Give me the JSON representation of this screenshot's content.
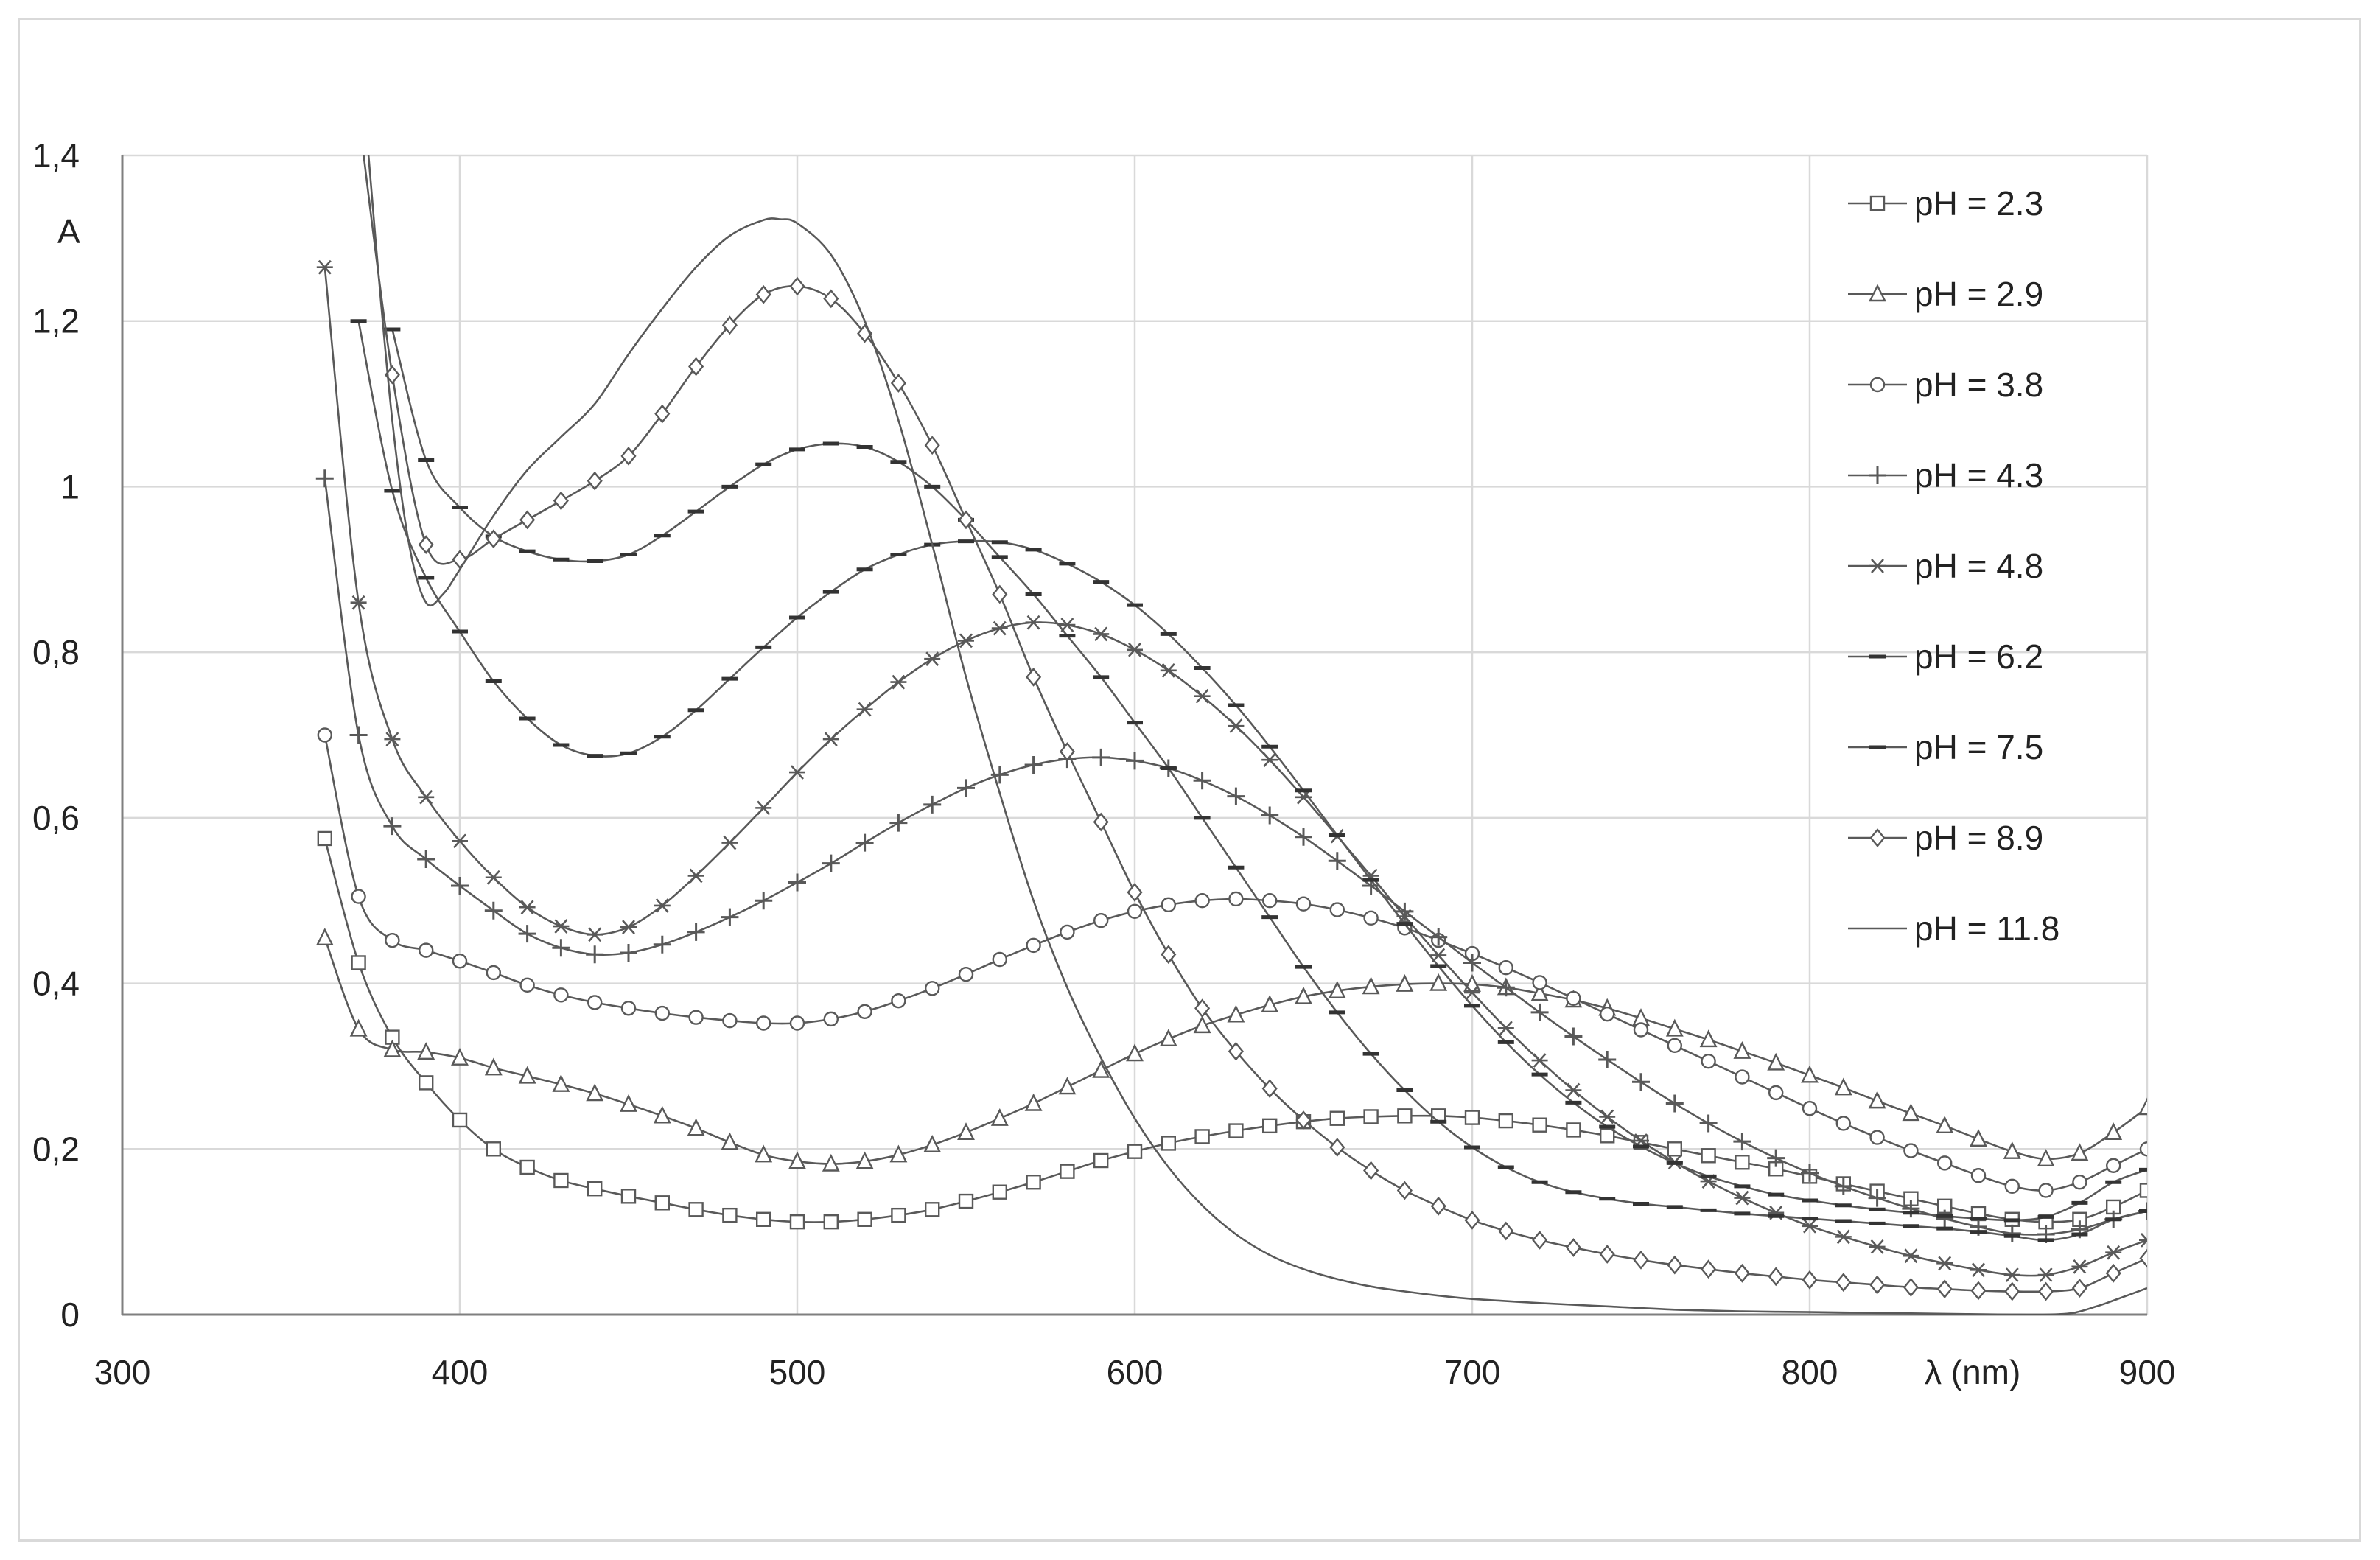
{
  "chart_data": {
    "type": "line",
    "xlabel": "λ (nm)",
    "ylabel": "A",
    "xlim": [
      300,
      900
    ],
    "ylim": [
      0,
      1.4
    ],
    "x_ticks": [
      "300",
      "400",
      "500",
      "600",
      "700",
      "800",
      "900"
    ],
    "y_ticks": [
      "0",
      "0,2",
      "0,4",
      "0,6",
      "0,8",
      "1",
      "1,2",
      "1,4"
    ],
    "grid": true,
    "legend_position": "right",
    "line_color": "#595959",
    "series": [
      {
        "name": "pH = 2.3",
        "marker": "square",
        "x": [
          360,
          370,
          380,
          390,
          400,
          410,
          420,
          430,
          440,
          450,
          460,
          470,
          480,
          490,
          500,
          510,
          520,
          530,
          540,
          550,
          560,
          570,
          580,
          590,
          600,
          610,
          620,
          630,
          640,
          650,
          660,
          670,
          680,
          690,
          700,
          710,
          720,
          730,
          740,
          750,
          760,
          770,
          780,
          790,
          800,
          810,
          820,
          830,
          840,
          850,
          860,
          870,
          880,
          890,
          900
        ],
        "y": [
          0.575,
          0.425,
          0.335,
          0.28,
          0.235,
          0.2,
          0.178,
          0.162,
          0.152,
          0.143,
          0.135,
          0.127,
          0.12,
          0.115,
          0.112,
          0.112,
          0.115,
          0.12,
          0.127,
          0.137,
          0.148,
          0.16,
          0.173,
          0.186,
          0.197,
          0.207,
          0.215,
          0.222,
          0.228,
          0.233,
          0.237,
          0.239,
          0.24,
          0.24,
          0.238,
          0.234,
          0.229,
          0.223,
          0.216,
          0.208,
          0.2,
          0.192,
          0.184,
          0.176,
          0.167,
          0.158,
          0.149,
          0.14,
          0.131,
          0.122,
          0.115,
          0.112,
          0.115,
          0.13,
          0.15
        ]
      },
      {
        "name": "pH = 2.9",
        "marker": "triangle",
        "x": [
          360,
          370,
          380,
          390,
          400,
          410,
          420,
          430,
          440,
          450,
          460,
          470,
          480,
          490,
          500,
          510,
          520,
          530,
          540,
          550,
          560,
          570,
          580,
          590,
          600,
          610,
          620,
          630,
          640,
          650,
          660,
          670,
          680,
          690,
          700,
          710,
          720,
          730,
          740,
          750,
          760,
          770,
          780,
          790,
          800,
          810,
          820,
          830,
          840,
          850,
          860,
          870,
          880,
          890,
          900
        ],
        "y": [
          0.455,
          0.345,
          0.32,
          0.317,
          0.31,
          0.298,
          0.288,
          0.278,
          0.267,
          0.254,
          0.24,
          0.225,
          0.208,
          0.193,
          0.185,
          0.182,
          0.185,
          0.193,
          0.205,
          0.22,
          0.237,
          0.255,
          0.275,
          0.295,
          0.315,
          0.333,
          0.349,
          0.362,
          0.374,
          0.384,
          0.391,
          0.396,
          0.399,
          0.4,
          0.399,
          0.395,
          0.388,
          0.38,
          0.37,
          0.358,
          0.345,
          0.332,
          0.318,
          0.304,
          0.289,
          0.274,
          0.258,
          0.243,
          0.228,
          0.212,
          0.197,
          0.188,
          0.195,
          0.22,
          0.25
        ]
      },
      {
        "name": "pH = 3.8",
        "marker": "circle",
        "x": [
          360,
          370,
          380,
          390,
          400,
          410,
          420,
          430,
          440,
          450,
          460,
          470,
          480,
          490,
          500,
          510,
          520,
          530,
          540,
          550,
          560,
          570,
          580,
          590,
          600,
          610,
          620,
          630,
          640,
          650,
          660,
          670,
          680,
          690,
          700,
          710,
          720,
          730,
          740,
          750,
          760,
          770,
          780,
          790,
          800,
          810,
          820,
          830,
          840,
          850,
          860,
          870,
          880,
          890,
          900
        ],
        "y": [
          0.7,
          0.505,
          0.452,
          0.44,
          0.427,
          0.413,
          0.398,
          0.386,
          0.377,
          0.37,
          0.364,
          0.359,
          0.355,
          0.352,
          0.352,
          0.357,
          0.366,
          0.379,
          0.394,
          0.411,
          0.429,
          0.446,
          0.462,
          0.476,
          0.487,
          0.495,
          0.5,
          0.502,
          0.5,
          0.496,
          0.489,
          0.479,
          0.467,
          0.452,
          0.436,
          0.419,
          0.401,
          0.382,
          0.363,
          0.344,
          0.325,
          0.306,
          0.287,
          0.268,
          0.249,
          0.231,
          0.214,
          0.198,
          0.183,
          0.168,
          0.155,
          0.15,
          0.16,
          0.18,
          0.2
        ]
      },
      {
        "name": "pH = 4.3",
        "marker": "plus",
        "x": [
          360,
          370,
          380,
          390,
          400,
          410,
          420,
          430,
          440,
          450,
          460,
          470,
          480,
          490,
          500,
          510,
          520,
          530,
          540,
          550,
          560,
          570,
          580,
          590,
          600,
          610,
          620,
          630,
          640,
          650,
          660,
          670,
          680,
          690,
          700,
          710,
          720,
          730,
          740,
          750,
          760,
          770,
          780,
          790,
          800,
          810,
          820,
          830,
          840,
          850,
          860,
          870,
          880,
          890,
          900
        ],
        "y": [
          1.01,
          0.7,
          0.59,
          0.55,
          0.518,
          0.488,
          0.46,
          0.443,
          0.435,
          0.437,
          0.447,
          0.462,
          0.48,
          0.5,
          0.522,
          0.545,
          0.57,
          0.594,
          0.616,
          0.636,
          0.652,
          0.664,
          0.671,
          0.673,
          0.669,
          0.66,
          0.645,
          0.626,
          0.603,
          0.577,
          0.548,
          0.518,
          0.487,
          0.456,
          0.425,
          0.395,
          0.365,
          0.336,
          0.308,
          0.281,
          0.255,
          0.231,
          0.209,
          0.189,
          0.171,
          0.155,
          0.141,
          0.128,
          0.116,
          0.106,
          0.098,
          0.097,
          0.103,
          0.115,
          0.125
        ]
      },
      {
        "name": "pH = 4.8",
        "marker": "asterisk",
        "x": [
          360,
          370,
          380,
          390,
          400,
          410,
          420,
          430,
          440,
          450,
          460,
          470,
          480,
          490,
          500,
          510,
          520,
          530,
          540,
          550,
          560,
          570,
          580,
          590,
          600,
          610,
          620,
          630,
          640,
          650,
          660,
          670,
          680,
          690,
          700,
          710,
          720,
          730,
          740,
          750,
          760,
          770,
          780,
          790,
          800,
          810,
          820,
          830,
          840,
          850,
          860,
          870,
          880,
          890,
          900
        ],
        "y": [
          1.265,
          0.86,
          0.695,
          0.625,
          0.572,
          0.528,
          0.492,
          0.469,
          0.459,
          0.468,
          0.494,
          0.53,
          0.57,
          0.612,
          0.655,
          0.695,
          0.731,
          0.764,
          0.792,
          0.814,
          0.829,
          0.836,
          0.833,
          0.822,
          0.803,
          0.778,
          0.747,
          0.711,
          0.67,
          0.625,
          0.578,
          0.53,
          0.481,
          0.434,
          0.389,
          0.346,
          0.307,
          0.271,
          0.239,
          0.21,
          0.184,
          0.161,
          0.141,
          0.123,
          0.107,
          0.094,
          0.082,
          0.071,
          0.062,
          0.054,
          0.048,
          0.048,
          0.058,
          0.075,
          0.09
        ]
      },
      {
        "name": "pH = 6.2",
        "marker": "dash",
        "x": [
          370,
          380,
          390,
          400,
          410,
          420,
          430,
          440,
          450,
          460,
          470,
          480,
          490,
          500,
          510,
          520,
          530,
          540,
          550,
          560,
          570,
          580,
          590,
          600,
          610,
          620,
          630,
          640,
          650,
          660,
          670,
          680,
          690,
          700,
          710,
          720,
          730,
          740,
          750,
          760,
          770,
          780,
          790,
          800,
          810,
          820,
          830,
          840,
          850,
          860,
          870,
          880,
          890,
          900
        ],
        "y": [
          1.2,
          0.995,
          0.89,
          0.825,
          0.765,
          0.72,
          0.688,
          0.675,
          0.678,
          0.698,
          0.73,
          0.768,
          0.806,
          0.842,
          0.873,
          0.9,
          0.918,
          0.93,
          0.934,
          0.933,
          0.924,
          0.907,
          0.885,
          0.857,
          0.822,
          0.781,
          0.736,
          0.686,
          0.633,
          0.579,
          0.525,
          0.472,
          0.421,
          0.373,
          0.329,
          0.29,
          0.256,
          0.227,
          0.203,
          0.183,
          0.167,
          0.155,
          0.145,
          0.138,
          0.132,
          0.127,
          0.123,
          0.119,
          0.116,
          0.114,
          0.118,
          0.135,
          0.16,
          0.175
        ]
      },
      {
        "name": "pH = 7.5",
        "marker": "dash",
        "x": [
          380,
          390,
          400,
          410,
          420,
          430,
          440,
          450,
          460,
          470,
          480,
          490,
          500,
          510,
          520,
          530,
          540,
          550,
          560,
          570,
          580,
          590,
          600,
          610,
          620,
          630,
          640,
          650,
          660,
          670,
          680,
          690,
          700,
          710,
          720,
          730,
          740,
          750,
          760,
          770,
          780,
          790,
          800,
          810,
          820,
          830,
          840,
          850,
          860,
          870,
          880,
          890,
          900
        ],
        "y": [
          1.19,
          1.032,
          0.975,
          0.94,
          0.922,
          0.912,
          0.91,
          0.918,
          0.941,
          0.97,
          1.0,
          1.027,
          1.045,
          1.052,
          1.048,
          1.03,
          1.0,
          0.96,
          0.915,
          0.87,
          0.82,
          0.77,
          0.715,
          0.66,
          0.6,
          0.54,
          0.48,
          0.42,
          0.365,
          0.315,
          0.271,
          0.233,
          0.202,
          0.178,
          0.16,
          0.148,
          0.14,
          0.134,
          0.13,
          0.126,
          0.122,
          0.119,
          0.116,
          0.113,
          0.11,
          0.107,
          0.104,
          0.1,
          0.095,
          0.09,
          0.097,
          0.115,
          0.125
        ]
      },
      {
        "name": "pH = 8.9",
        "marker": "diamond",
        "x": [
          370,
          380,
          390,
          400,
          410,
          420,
          430,
          440,
          450,
          460,
          470,
          480,
          490,
          500,
          510,
          520,
          530,
          540,
          550,
          560,
          570,
          580,
          590,
          600,
          610,
          620,
          630,
          640,
          650,
          660,
          670,
          680,
          690,
          700,
          710,
          720,
          730,
          740,
          750,
          760,
          770,
          780,
          790,
          800,
          810,
          820,
          830,
          840,
          850,
          860,
          870,
          880,
          890,
          900
        ],
        "y": [
          1.45,
          1.135,
          0.93,
          0.912,
          0.937,
          0.96,
          0.983,
          1.007,
          1.037,
          1.088,
          1.145,
          1.195,
          1.232,
          1.242,
          1.227,
          1.185,
          1.125,
          1.05,
          0.96,
          0.87,
          0.77,
          0.68,
          0.595,
          0.51,
          0.435,
          0.37,
          0.318,
          0.273,
          0.235,
          0.202,
          0.174,
          0.15,
          0.131,
          0.114,
          0.101,
          0.09,
          0.081,
          0.073,
          0.066,
          0.06,
          0.055,
          0.05,
          0.046,
          0.042,
          0.039,
          0.036,
          0.033,
          0.031,
          0.029,
          0.028,
          0.028,
          0.032,
          0.05,
          0.068
        ]
      },
      {
        "name": "pH = 11.8",
        "marker": "none",
        "x": [
          370,
          375,
          380,
          385,
          390,
          395,
          400,
          410,
          420,
          430,
          440,
          450,
          460,
          470,
          480,
          490,
          495,
          500,
          510,
          520,
          530,
          540,
          550,
          560,
          570,
          580,
          590,
          600,
          610,
          620,
          630,
          640,
          650,
          660,
          670,
          680,
          690,
          700,
          720,
          740,
          760,
          780,
          800,
          820,
          840,
          860,
          870,
          878,
          885,
          890,
          900
        ],
        "y": [
          1.55,
          1.3,
          1.08,
          0.93,
          0.86,
          0.87,
          0.9,
          0.965,
          1.02,
          1.06,
          1.1,
          1.16,
          1.215,
          1.265,
          1.303,
          1.322,
          1.323,
          1.318,
          1.28,
          1.2,
          1.08,
          0.93,
          0.77,
          0.63,
          0.5,
          0.395,
          0.31,
          0.237,
          0.178,
          0.132,
          0.097,
          0.072,
          0.055,
          0.043,
          0.034,
          0.028,
          0.023,
          0.019,
          0.014,
          0.01,
          0.006,
          0.004,
          0.003,
          0.002,
          0.001,
          0.0,
          0.0,
          0.002,
          0.01,
          0.017,
          0.032
        ]
      }
    ]
  }
}
